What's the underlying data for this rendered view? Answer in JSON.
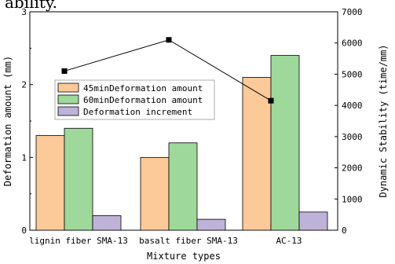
{
  "chart_data": {
    "type": "bar",
    "title": "ability.",
    "xlabel": "Mixture types",
    "ylabel": "Deformation amount (mm)",
    "y2label": "Dynamic Stability (time/mm)",
    "categories": [
      "lignin fiber SMA-13",
      "basalt fiber SMA-13",
      "AC-13"
    ],
    "ylim": [
      0,
      3
    ],
    "yticks": [
      0,
      1,
      2,
      3
    ],
    "y2lim": [
      0,
      7000
    ],
    "y2ticks": [
      0,
      1000,
      2000,
      3000,
      4000,
      5000,
      6000,
      7000
    ],
    "series": [
      {
        "name": "45minDeformation amount",
        "color": "#fcc999",
        "values": [
          1.3,
          1.0,
          2.1
        ]
      },
      {
        "name": "60minDeformation amount",
        "color": "#9ed89a",
        "values": [
          1.4,
          1.2,
          2.4
        ]
      },
      {
        "name": "Deformation increment",
        "color": "#bfb2d9",
        "values": [
          0.2,
          0.15,
          0.25
        ]
      }
    ],
    "line_series": {
      "axis": "right",
      "color": "#000000",
      "values": [
        5100,
        6100,
        4150
      ]
    },
    "legend_position": "center-left"
  }
}
